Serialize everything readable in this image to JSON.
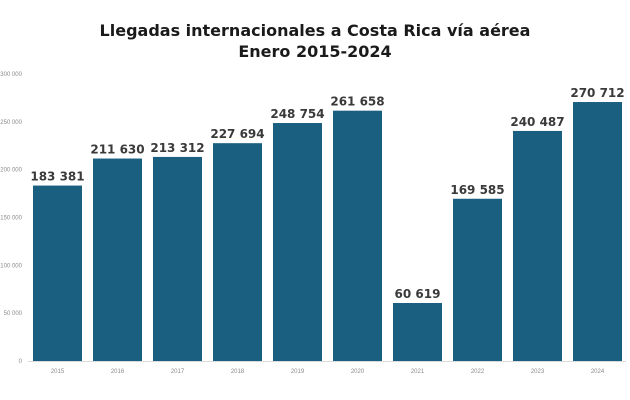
{
  "chart_data": {
    "type": "bar",
    "title": "Llegadas internacionales a Costa Rica vía aérea",
    "subtitle": "Enero 2015-2024",
    "xlabel": "",
    "ylabel": "",
    "categories": [
      "2015",
      "2016",
      "2017",
      "2018",
      "2019",
      "2020",
      "2021",
      "2022",
      "2023",
      "2024"
    ],
    "values": [
      183381,
      211630,
      213312,
      227694,
      248754,
      261658,
      60619,
      169585,
      240487,
      270712
    ],
    "data_labels": [
      "183 381",
      "211 630",
      "213 312",
      "227 694",
      "248 754",
      "261 658",
      "60 619",
      "169 585",
      "240 487",
      "270 712"
    ],
    "ylim": [
      0,
      300000
    ],
    "yticks": [
      0,
      50000,
      100000,
      150000,
      200000,
      250000,
      300000
    ],
    "ytick_labels": [
      "0",
      "50 000",
      "100 000",
      "150 000",
      "200 000",
      "250 000",
      "300 000"
    ],
    "grid": false,
    "legend": "none",
    "bar_color": "#1a5e80"
  }
}
